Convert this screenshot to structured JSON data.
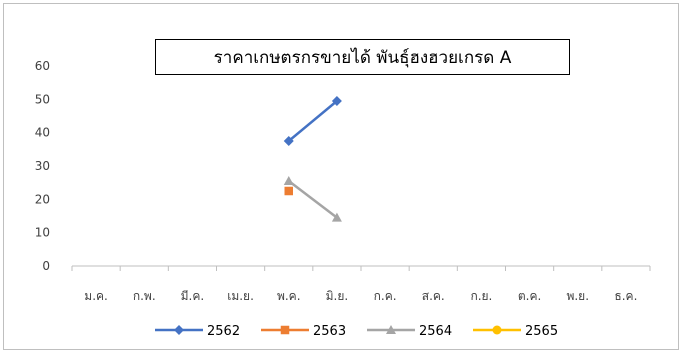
{
  "chart_data": {
    "type": "line",
    "title": "ราคาเกษตรกรขายได้ พันธุ์ฮงฮวยเกรด A",
    "xlabel": "",
    "ylabel": "",
    "categories": [
      "ม.ค.",
      "ก.พ.",
      "มี.ค.",
      "เม.ย.",
      "พ.ค.",
      "มิ.ย.",
      "ก.ค.",
      "ส.ค.",
      "ก.ย.",
      "ต.ค.",
      "พ.ย.",
      "ธ.ค."
    ],
    "ylim": [
      0,
      60
    ],
    "yticks": [
      "0",
      "10",
      "20",
      "30",
      "40",
      "50",
      "60"
    ],
    "grid": false,
    "legend_position": "bottom",
    "series": [
      {
        "name": "2562",
        "color": "#4472c4",
        "marker": "diamond",
        "values": [
          null,
          null,
          null,
          null,
          37.5,
          49.5,
          null,
          null,
          null,
          null,
          null,
          null
        ]
      },
      {
        "name": "2563",
        "color": "#ed7d31",
        "marker": "square",
        "values": [
          null,
          null,
          null,
          null,
          22.5,
          null,
          null,
          null,
          null,
          null,
          null,
          null
        ]
      },
      {
        "name": "2564",
        "color": "#a5a5a5",
        "marker": "triangle",
        "values": [
          null,
          null,
          null,
          null,
          25.5,
          14.5,
          null,
          null,
          null,
          null,
          null,
          null
        ]
      },
      {
        "name": "2565",
        "color": "#ffc000",
        "marker": "circle",
        "values": [
          null,
          null,
          null,
          null,
          null,
          null,
          null,
          null,
          null,
          null,
          null,
          null
        ]
      }
    ]
  }
}
